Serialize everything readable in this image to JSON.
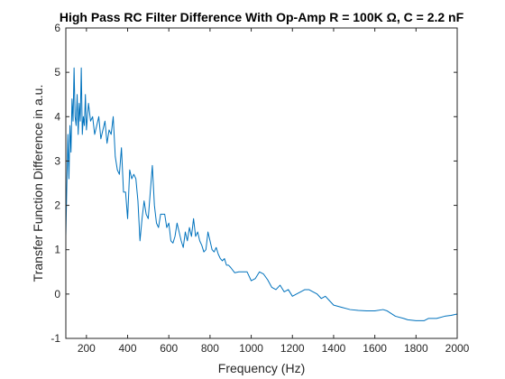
{
  "chart_data": {
    "type": "line",
    "title": "High Pass RC Filter Difference With Op-Amp R = 100K Ω, C = 2.2 nF",
    "xlabel": "Frequency (Hz)",
    "ylabel": "Transfer Function Difference in a.u.",
    "xlim": [
      100,
      2000
    ],
    "ylim": [
      -1,
      6
    ],
    "x_ticks": [
      200,
      400,
      600,
      800,
      1000,
      1200,
      1400,
      1600,
      1800,
      2000
    ],
    "y_ticks": [
      -1,
      0,
      1,
      2,
      3,
      4,
      5,
      6
    ],
    "grid": false,
    "legend": "none",
    "line_color": "#0072bd",
    "series": [
      {
        "x": [
          100,
          105,
          110,
          115,
          120,
          125,
          130,
          135,
          140,
          145,
          150,
          155,
          160,
          165,
          170,
          175,
          180,
          185,
          190,
          195,
          200,
          210,
          220,
          230,
          240,
          250,
          260,
          270,
          280,
          290,
          300,
          310,
          320,
          330,
          340,
          350,
          360,
          370,
          380,
          390,
          400,
          410,
          420,
          430,
          440,
          450,
          460,
          470,
          480,
          490,
          500,
          510,
          520,
          530,
          540,
          550,
          560,
          570,
          580,
          590,
          600,
          610,
          620,
          630,
          640,
          650,
          660,
          670,
          680,
          690,
          700,
          710,
          720,
          730,
          740,
          750,
          760,
          770,
          780,
          790,
          800,
          810,
          820,
          830,
          840,
          850,
          860,
          870,
          880,
          890,
          900,
          920,
          940,
          960,
          980,
          1000,
          1020,
          1040,
          1060,
          1080,
          1100,
          1120,
          1140,
          1160,
          1180,
          1200,
          1220,
          1240,
          1260,
          1280,
          1300,
          1320,
          1340,
          1360,
          1380,
          1400,
          1440,
          1480,
          1520,
          1560,
          1600,
          1640,
          1660,
          1700,
          1740,
          1760,
          1800,
          1820,
          1840,
          1860,
          1900,
          1940,
          1970,
          2000
        ],
        "y": [
          1.3,
          2.5,
          3.6,
          2.6,
          3.8,
          3.2,
          4.4,
          3.9,
          5.1,
          4.0,
          3.8,
          4.5,
          3.6,
          4.3,
          3.9,
          5.1,
          3.6,
          4.0,
          3.8,
          4.5,
          3.7,
          4.3,
          3.9,
          4.0,
          3.6,
          3.8,
          4.0,
          3.5,
          3.7,
          3.9,
          3.4,
          3.7,
          3.6,
          4.0,
          3.1,
          2.8,
          2.7,
          3.3,
          2.3,
          2.3,
          1.7,
          2.8,
          2.6,
          2.7,
          2.6,
          2.1,
          1.2,
          1.7,
          2.1,
          1.8,
          1.7,
          2.3,
          2.9,
          2.0,
          1.6,
          1.5,
          1.8,
          1.8,
          1.8,
          1.5,
          1.6,
          1.2,
          1.15,
          1.3,
          1.6,
          1.4,
          1.2,
          1.05,
          1.4,
          1.2,
          1.5,
          1.3,
          1.7,
          1.3,
          1.4,
          1.2,
          1.1,
          0.95,
          1.0,
          1.4,
          1.2,
          1.0,
          0.95,
          1.05,
          0.9,
          0.8,
          0.75,
          0.8,
          0.65,
          0.65,
          0.6,
          0.48,
          0.5,
          0.5,
          0.5,
          0.3,
          0.35,
          0.5,
          0.45,
          0.32,
          0.15,
          0.1,
          0.2,
          0.05,
          0.1,
          -0.05,
          0.0,
          0.05,
          0.1,
          0.1,
          0.05,
          0.0,
          -0.1,
          -0.05,
          -0.15,
          -0.25,
          -0.3,
          -0.35,
          -0.37,
          -0.38,
          -0.38,
          -0.35,
          -0.38,
          -0.5,
          -0.55,
          -0.58,
          -0.6,
          -0.6,
          -0.6,
          -0.55,
          -0.55,
          -0.5,
          -0.48,
          -0.45
        ]
      }
    ]
  }
}
